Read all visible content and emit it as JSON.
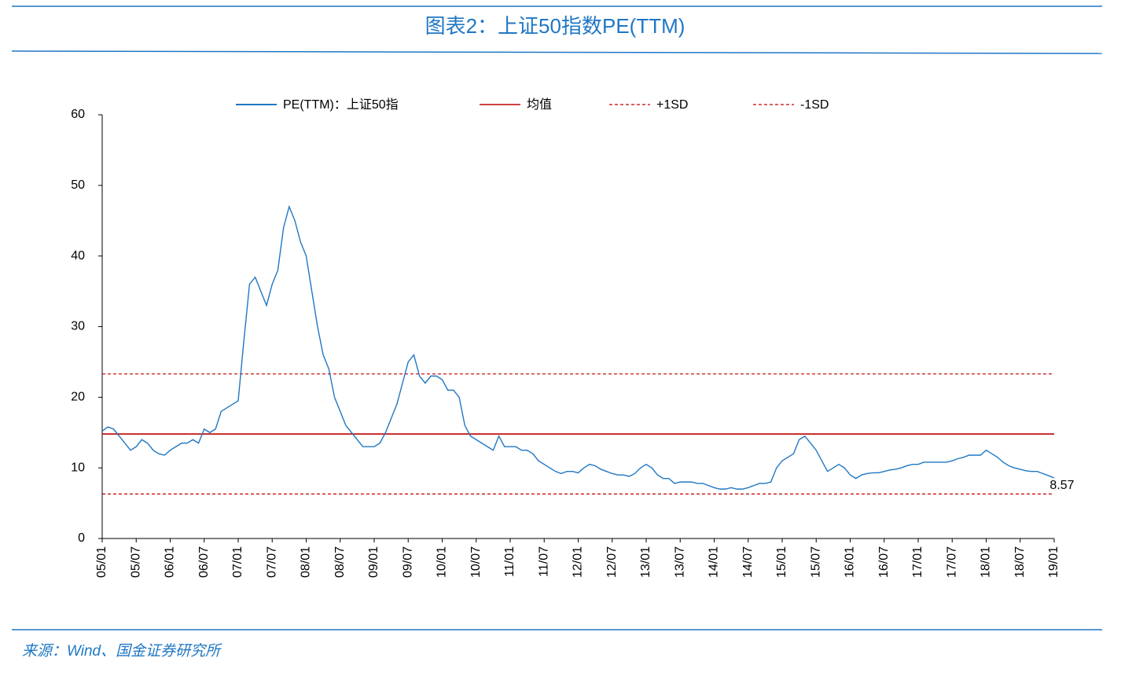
{
  "chart_data": {
    "type": "line",
    "title": "图表2：上证50指数PE(TTM)",
    "source": "来源：Wind、国金证券研究所",
    "categories": [
      "05/01",
      null,
      null,
      null,
      null,
      null,
      "05/07",
      null,
      null,
      null,
      null,
      null,
      "06/01",
      null,
      null,
      null,
      null,
      null,
      "06/07",
      null,
      null,
      null,
      null,
      null,
      "07/01",
      null,
      null,
      null,
      null,
      null,
      "07/07",
      null,
      null,
      null,
      null,
      null,
      "08/01",
      null,
      null,
      null,
      null,
      null,
      "08/07",
      null,
      null,
      null,
      null,
      null,
      "09/01",
      null,
      null,
      null,
      null,
      null,
      "09/07",
      null,
      null,
      null,
      null,
      null,
      "10/01",
      null,
      null,
      null,
      null,
      null,
      "10/07",
      null,
      null,
      null,
      null,
      null,
      "11/01",
      null,
      null,
      null,
      null,
      null,
      "11/07",
      null,
      null,
      null,
      null,
      null,
      "12/01",
      null,
      null,
      null,
      null,
      null,
      "12/07",
      null,
      null,
      null,
      null,
      null,
      "13/01",
      null,
      null,
      null,
      null,
      null,
      "13/07",
      null,
      null,
      null,
      null,
      null,
      "14/01",
      null,
      null,
      null,
      null,
      null,
      "14/07",
      null,
      null,
      null,
      null,
      null,
      "15/01",
      null,
      null,
      null,
      null,
      null,
      "15/07",
      null,
      null,
      null,
      null,
      null,
      "16/01",
      null,
      null,
      null,
      null,
      null,
      "16/07",
      null,
      null,
      null,
      null,
      null,
      "17/01",
      null,
      null,
      null,
      null,
      null,
      "17/07",
      null,
      null,
      null,
      null,
      null,
      "18/01",
      null,
      null,
      null,
      null,
      null,
      "18/07",
      null,
      null,
      null,
      null,
      null,
      "19/01"
    ],
    "series": [
      {
        "name": "PE(TTM)：上证50指",
        "color": "#1f77c4",
        "values": [
          15.2,
          15.8,
          15.5,
          14.5,
          13.5,
          12.5,
          13.0,
          14.0,
          13.5,
          12.5,
          12.0,
          11.8,
          12.5,
          13.0,
          13.5,
          13.5,
          14.0,
          13.5,
          15.5,
          15.0,
          15.5,
          18.0,
          18.5,
          19.0,
          19.5,
          28,
          36,
          37,
          35,
          33,
          36,
          38,
          44,
          47,
          45,
          42,
          40,
          35,
          30,
          26,
          24,
          20,
          18,
          16,
          15,
          14,
          13,
          13,
          13,
          13.5,
          15,
          17,
          19,
          22,
          25,
          26,
          23,
          22,
          23,
          23,
          22.5,
          21,
          21,
          20,
          16,
          14.5,
          14,
          13.5,
          13,
          12.5,
          14.5,
          13,
          13,
          13,
          12.5,
          12.5,
          12,
          11,
          10.5,
          10,
          9.5,
          9.2,
          9.5,
          9.5,
          9.3,
          10,
          10.5,
          10.3,
          9.8,
          9.5,
          9.2,
          9,
          9,
          8.8,
          9.2,
          10.0,
          10.5,
          10,
          9,
          8.5,
          8.5,
          7.8,
          8,
          8,
          8,
          7.8,
          7.8,
          7.5,
          7.2,
          7,
          7,
          7.2,
          7,
          7,
          7.2,
          7.5,
          7.8,
          7.8,
          8,
          10,
          11,
          11.5,
          12,
          14,
          14.5,
          13.5,
          12.5,
          11,
          9.5,
          10,
          10.5,
          10,
          9,
          8.5,
          9,
          9.2,
          9.3,
          9.3,
          9.5,
          9.7,
          9.8,
          10,
          10.3,
          10.5,
          10.5,
          10.8,
          10.8,
          10.8,
          10.8,
          10.8,
          11,
          11.3,
          11.5,
          11.8,
          11.8,
          11.8,
          12.5,
          12,
          11.5,
          10.8,
          10.3,
          10,
          9.8,
          9.6,
          9.5,
          9.5,
          9.2,
          8.9,
          8.57
        ]
      }
    ],
    "reference_lines": [
      {
        "name": "均值",
        "value": 14.8,
        "color": "#c00000",
        "dashed": false
      },
      {
        "name": "+1SD",
        "value": 23.3,
        "color": "#c00000",
        "dashed": true
      },
      {
        "name": "-1SD",
        "value": 6.3,
        "color": "#c00000",
        "dashed": true
      }
    ],
    "ylim": [
      0,
      60
    ],
    "yticks": [
      0,
      10,
      20,
      30,
      40,
      50,
      60
    ],
    "grid": false
  }
}
